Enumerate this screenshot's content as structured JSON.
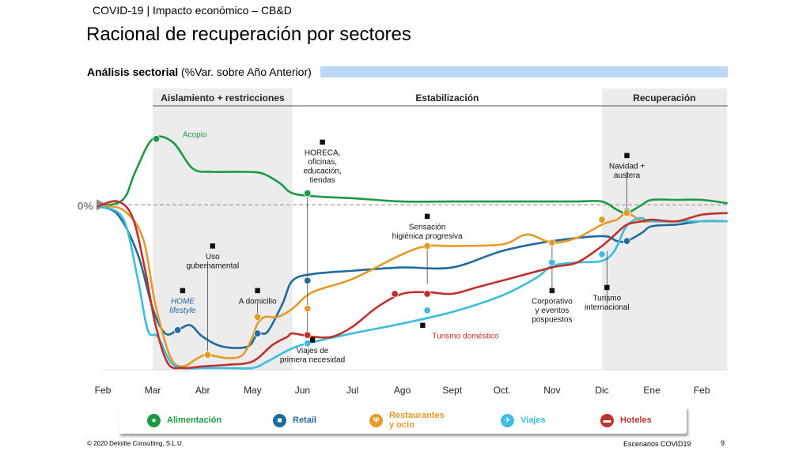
{
  "header": {
    "context": "COVID-19 | Impacto económico – CB&D",
    "title": "Racional de recuperación por sectores"
  },
  "subtitle": {
    "bold": "Análisis sectorial",
    "rest": " (%Var. sobre Año Anterior)"
  },
  "footer": {
    "copyright": "© 2020 Deloitte Consulting, S.L.U.",
    "scenario": "Escenarios COVID19",
    "page": "9"
  },
  "colors": {
    "alimentacion": "#1a9a45",
    "retail": "#1f6a9e",
    "restaurantes": "#e39a26",
    "viajes": "#3cbde0",
    "hoteles": "#c0302d",
    "phase_bg": "#ececec",
    "subbar": "#bdd7f7"
  },
  "legend": [
    {
      "label": "Alimentación",
      "color": "#1a9a45",
      "icon": "apple-icon"
    },
    {
      "label": "Retail",
      "color": "#1f6a9e",
      "icon": "shopping-bag-icon"
    },
    {
      "label": "Restaurantes\ny ocio",
      "color": "#e39a26",
      "icon": "cutlery-icon"
    },
    {
      "label": "Viajes",
      "color": "#3cbde0",
      "icon": "airplane-icon"
    },
    {
      "label": "Hoteles",
      "color": "#c0302d",
      "icon": "bed-icon"
    }
  ],
  "chart_data": {
    "type": "line",
    "title": "Racional de recuperación por sectores",
    "ylabel": "%Var. sobre Año Anterior",
    "xlabel": "",
    "x_label_positions": [
      0,
      1,
      2,
      3,
      4,
      5,
      6,
      7,
      8,
      9,
      10,
      11,
      12
    ],
    "x_tick_labels": [
      "Feb",
      "Mar",
      "Abr",
      "May",
      "Jun",
      "Jul",
      "Ago",
      "Sept",
      "Oct.",
      "Nov",
      "Dic",
      "Ene",
      "Feb"
    ],
    "xlim": [
      0,
      12.5
    ],
    "ylim": [
      -100,
      60
    ],
    "zero_label": "0%",
    "phases": [
      {
        "label": "Aislamiento + restricciones",
        "start": 1.0,
        "end": 3.8,
        "shaded": true
      },
      {
        "label": "Estabilización",
        "start": 3.8,
        "end": 10.0,
        "shaded": false
      },
      {
        "label": "Recuperación",
        "start": 10.0,
        "end": 12.5,
        "shaded": true
      }
    ],
    "series": [
      {
        "name": "Alimentación",
        "color": "#1a9a45",
        "x": [
          -0.1,
          0.4,
          0.65,
          1.0,
          1.4,
          1.8,
          2.2,
          2.8,
          3.2,
          3.55,
          3.8,
          4.3,
          5.0,
          6.0,
          7.0,
          8.0,
          9.0,
          9.5,
          10.0,
          10.3,
          10.5,
          10.8,
          11.0,
          11.5,
          12.0,
          12.5
        ],
        "y": [
          -1,
          3,
          20,
          40,
          38,
          22,
          20,
          20,
          19,
          13,
          7,
          5,
          4,
          2,
          2,
          2,
          2,
          2,
          2,
          -3,
          -5,
          0,
          3,
          3,
          3,
          1
        ]
      },
      {
        "name": "Retail",
        "color": "#1f6a9e",
        "x": [
          -0.1,
          0.3,
          0.7,
          1.0,
          1.25,
          1.5,
          1.75,
          2.0,
          2.4,
          2.9,
          3.1,
          3.3,
          3.6,
          3.8,
          4.2,
          5.0,
          6.0,
          7.0,
          8.0,
          9.0,
          10.0,
          10.3,
          10.5,
          10.8,
          11.0,
          11.5,
          12.0,
          12.5
        ],
        "y": [
          -1,
          -6,
          -30,
          -63,
          -78,
          -76,
          -73,
          -80,
          -86,
          -86,
          -78,
          -77,
          -60,
          -46,
          -42,
          -40,
          -38,
          -38,
          -28,
          -22,
          -19,
          -22,
          -22,
          -17,
          -13,
          -12,
          -10,
          -10
        ]
      },
      {
        "name": "Restaurantes y ocio",
        "color": "#e39a26",
        "x": [
          -0.1,
          0.4,
          0.8,
          1.05,
          1.35,
          1.6,
          1.9,
          2.1,
          2.5,
          2.8,
          3.0,
          3.1,
          3.25,
          3.5,
          3.8,
          4.2,
          5.0,
          6.0,
          6.5,
          7.0,
          8.0,
          8.5,
          9.0,
          9.5,
          10.0,
          10.3,
          10.5,
          10.8,
          11.0,
          11.5,
          12.0,
          12.5
        ],
        "y": [
          -1,
          -3,
          -20,
          -60,
          -92,
          -98,
          -93,
          -91,
          -93,
          -91,
          -80,
          -72,
          -68,
          -68,
          -63,
          -53,
          -45,
          -30,
          -25,
          -25,
          -24,
          -18,
          -23,
          -20,
          -12,
          -9,
          -5,
          -10,
          -10,
          -10,
          -10,
          -10
        ]
      },
      {
        "name": "Viajes",
        "color": "#3cbde0",
        "x": [
          -0.1,
          0.4,
          0.7,
          0.9,
          1.1,
          1.35,
          1.6,
          2.0,
          2.5,
          3.0,
          3.3,
          3.6,
          3.8,
          4.1,
          5.0,
          6.0,
          7.0,
          8.0,
          8.7,
          9.0,
          9.5,
          10.0,
          10.25,
          10.45,
          10.6,
          10.8,
          11.0,
          12.0,
          12.5
        ],
        "y": [
          -1,
          -8,
          -45,
          -76,
          -80,
          -95,
          -99,
          -99,
          -99,
          -99,
          -95,
          -90,
          -87,
          -84,
          -78,
          -72,
          -65,
          -55,
          -44,
          -37,
          -35,
          -34,
          -28,
          -15,
          -10,
          -8,
          -10,
          -10,
          -10
        ]
      },
      {
        "name": "Hoteles",
        "color": "#c0302d",
        "x": [
          -0.1,
          0.3,
          0.6,
          0.85,
          1.05,
          1.3,
          1.6,
          2.0,
          2.5,
          3.0,
          3.4,
          3.7,
          3.8,
          4.2,
          4.6,
          5.0,
          5.5,
          6.0,
          6.5,
          7.0,
          7.5,
          8.0,
          9.0,
          9.5,
          10.0,
          10.3,
          10.5,
          10.8,
          11.0,
          11.5,
          12.0,
          12.5
        ],
        "y": [
          -1,
          2,
          -8,
          -40,
          -72,
          -96,
          -99,
          -98,
          -97,
          -95,
          -85,
          -80,
          -78,
          -80,
          -80,
          -74,
          -62,
          -54,
          -53,
          -54,
          -50,
          -46,
          -38,
          -35,
          -25,
          -17,
          -12,
          -10,
          -9,
          -10,
          -6,
          -5
        ]
      }
    ],
    "markers": [
      {
        "series": "Alimentación",
        "x": 1.07,
        "y": 40
      },
      {
        "series": "Alimentación",
        "x": 4.1,
        "y": 7
      },
      {
        "series": "Alimentación",
        "x": 10.5,
        "y": -4
      },
      {
        "series": "Retail",
        "x": 1.5,
        "y": -76
      },
      {
        "series": "Retail",
        "x": 3.1,
        "y": -78
      },
      {
        "series": "Retail",
        "x": 4.1,
        "y": -46
      },
      {
        "series": "Retail",
        "x": 10.5,
        "y": -22
      },
      {
        "series": "Restaurantes y ocio",
        "x": 2.1,
        "y": -91
      },
      {
        "series": "Restaurantes y ocio",
        "x": 3.1,
        "y": -68
      },
      {
        "series": "Restaurantes y ocio",
        "x": 4.1,
        "y": -63
      },
      {
        "series": "Restaurantes y ocio",
        "x": 6.5,
        "y": -25
      },
      {
        "series": "Restaurantes y ocio",
        "x": 9.0,
        "y": -23
      },
      {
        "series": "Restaurantes y ocio",
        "x": 10.0,
        "y": -9
      },
      {
        "series": "Restaurantes y ocio",
        "x": 10.5,
        "y": -5
      },
      {
        "series": "Viajes",
        "x": 4.1,
        "y": -84
      },
      {
        "series": "Viajes",
        "x": 6.5,
        "y": -64
      },
      {
        "series": "Viajes",
        "x": 9.0,
        "y": -35
      },
      {
        "series": "Viajes",
        "x": 10.0,
        "y": -30
      },
      {
        "series": "Hoteles",
        "x": 4.1,
        "y": -79
      },
      {
        "series": "Hoteles",
        "x": 5.85,
        "y": -54
      },
      {
        "series": "Hoteles",
        "x": 6.5,
        "y": -54
      }
    ],
    "annotations": [
      {
        "text": "Acopio",
        "series": "Alimentación",
        "x": 1.6,
        "y": 41
      },
      {
        "text": "HORECA,\noficinas,\neducación,\ntiendas",
        "x": 4.4,
        "y": 30,
        "icon": "open-sign-icon"
      },
      {
        "text": "Navidad +\naustera",
        "x": 10.5,
        "y": 22,
        "icon": "gift-icon"
      },
      {
        "text": "Uso\ngubernamental",
        "x": 2.2,
        "y": -33,
        "icon": "building-icon"
      },
      {
        "text": "HOME\nlifestyle",
        "series": "Retail",
        "x": 1.6,
        "y": -60,
        "icon": "mouse-icon",
        "italic": true
      },
      {
        "text": "A domicilio",
        "x": 3.1,
        "y": -60,
        "icon": "wifi-icon"
      },
      {
        "text": "Sensación\nhigiénica progresiva",
        "x": 6.5,
        "y": -15,
        "icon": "sanitizer-icon"
      },
      {
        "text": "Turismo doméstico",
        "series": "Hoteles",
        "x": 6.6,
        "y": -81,
        "icon": "spain-map-icon"
      },
      {
        "text": "Viajes de\nprimera necesidad",
        "x": 4.2,
        "y": -90,
        "icon": "airplane-icon"
      },
      {
        "text": "Corporativo\ny eventos\npospuestos",
        "x": 9.0,
        "y": -60,
        "icon": "briefcase-icon"
      },
      {
        "text": "Turismo\ninternacional",
        "x": 10.1,
        "y": -58,
        "icon": "globe-icon"
      }
    ]
  }
}
